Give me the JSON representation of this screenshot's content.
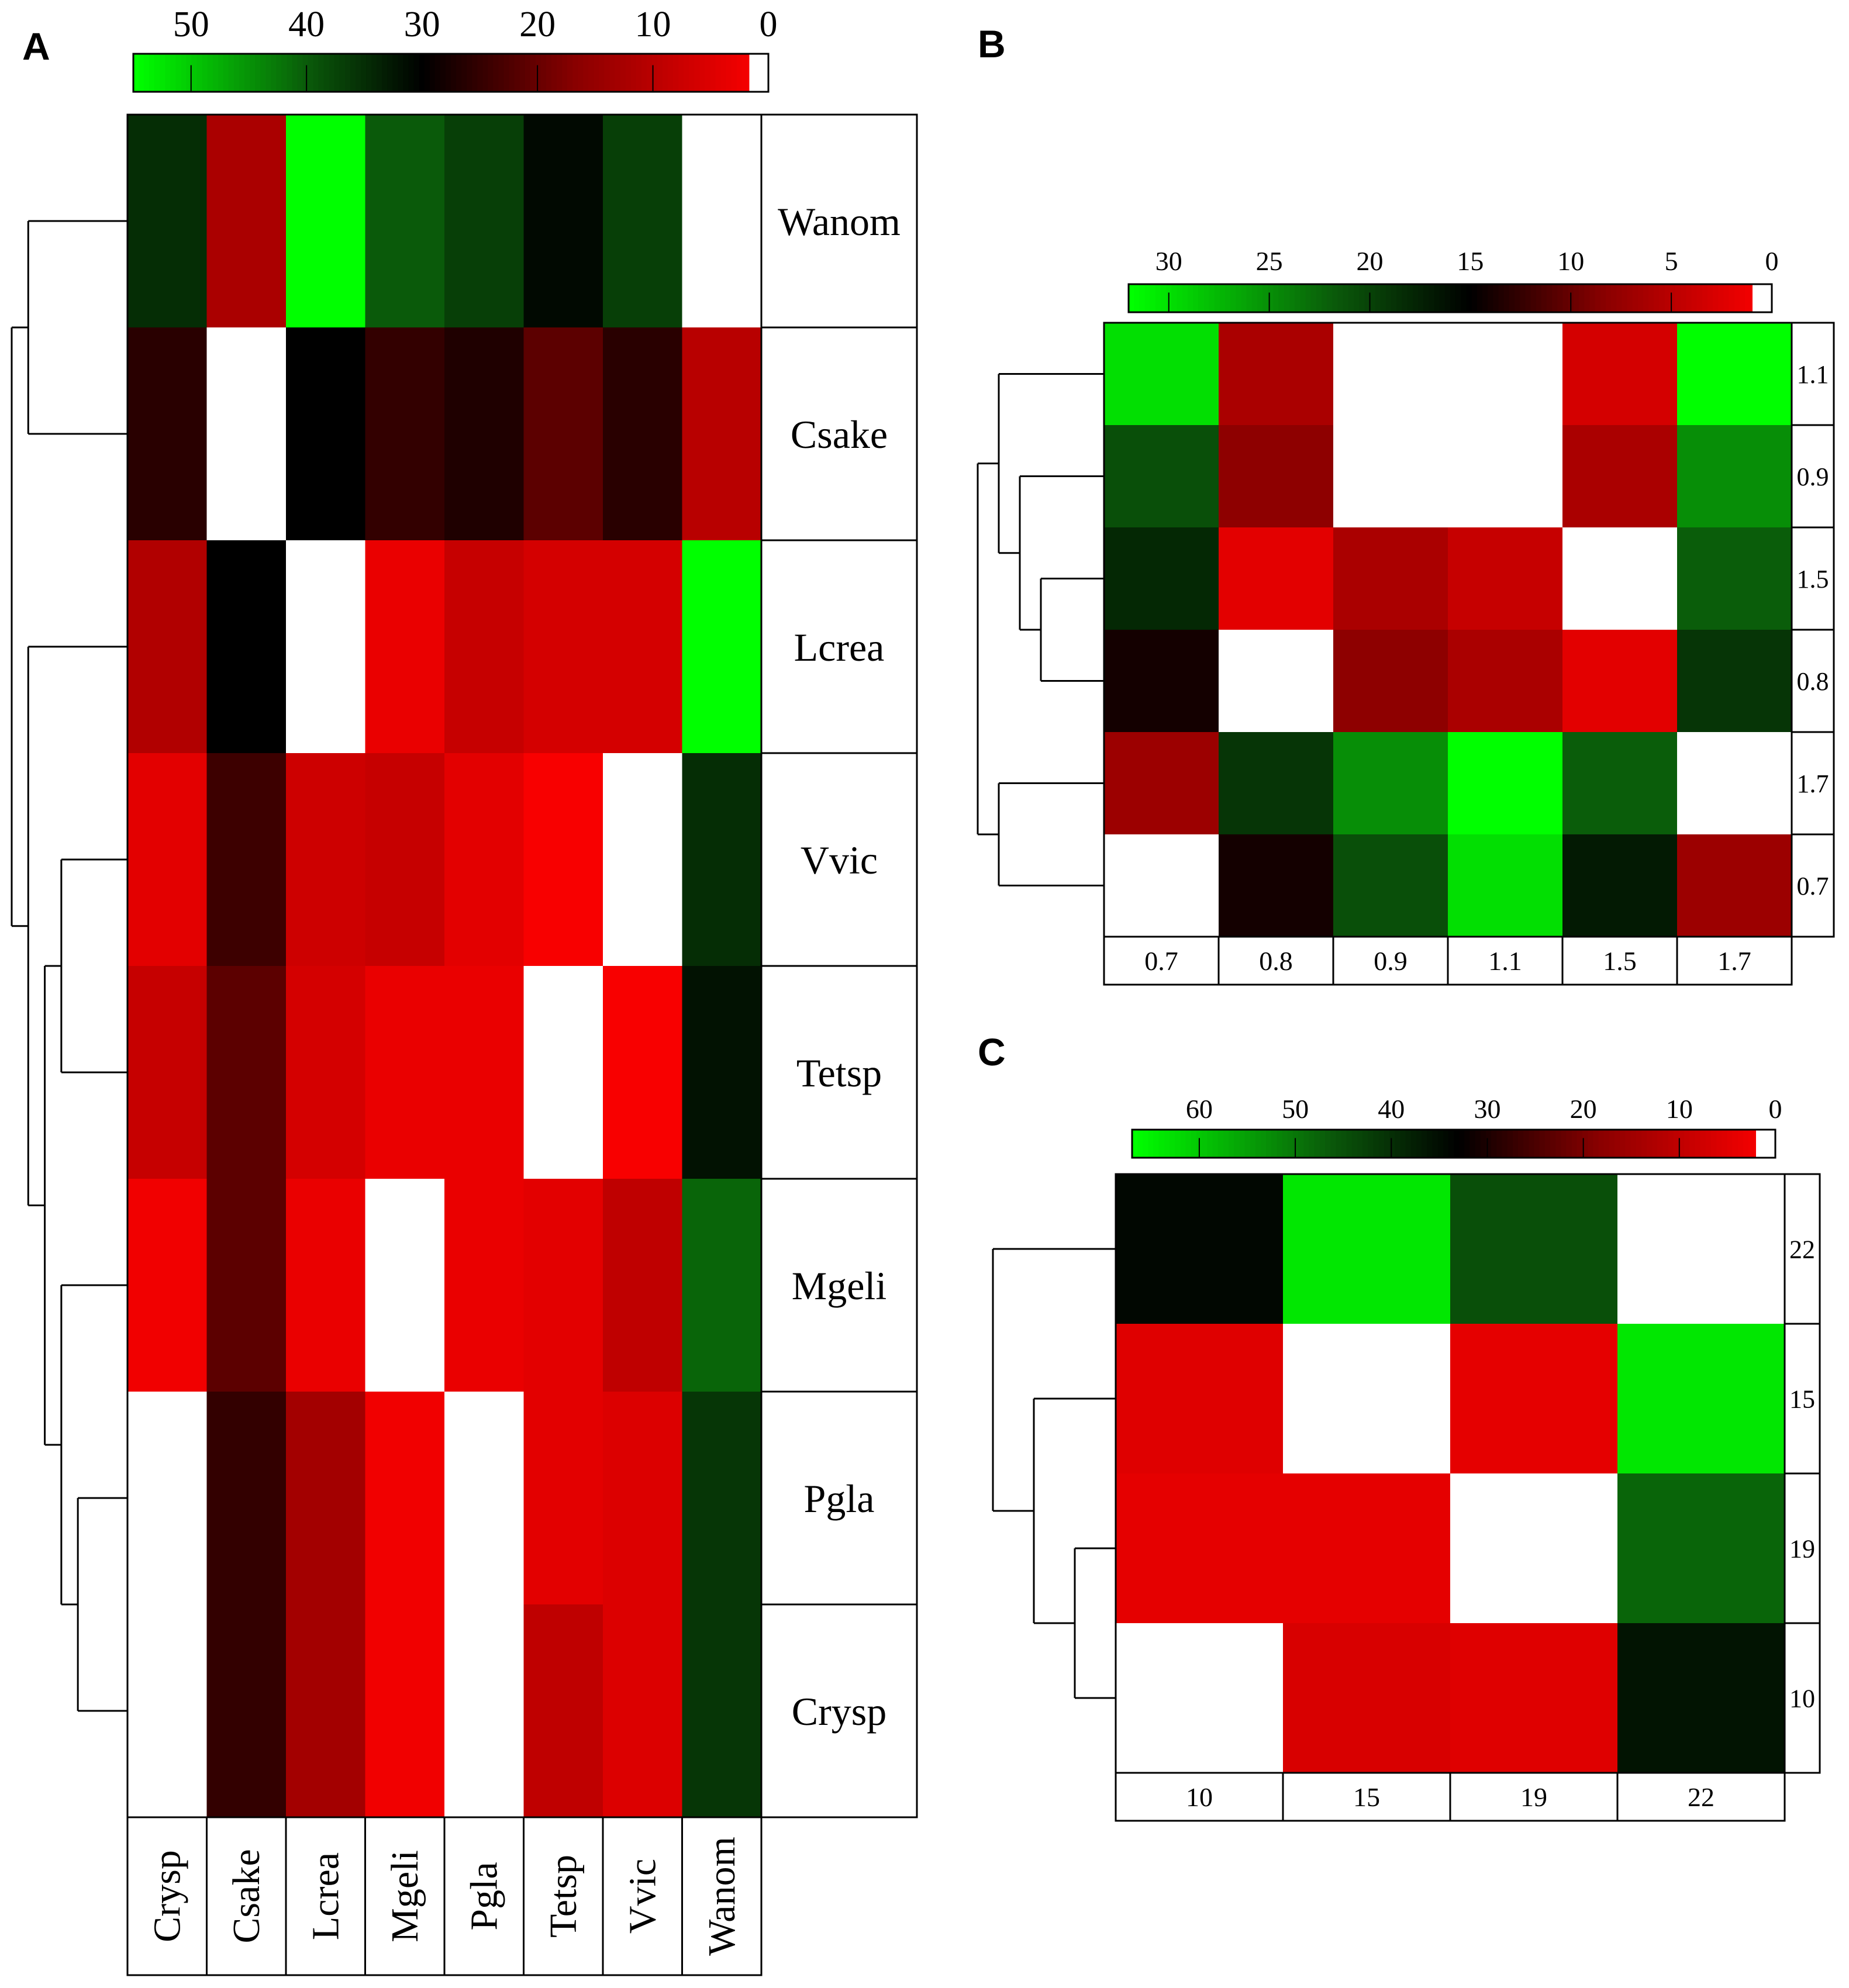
{
  "colors": {
    "scale": [
      "#ff0000",
      "#8a0000",
      "#000000",
      "#0a5a0a",
      "#00ff00"
    ],
    "diagonal": "#ffffff",
    "grid": "#000000"
  },
  "chart_data": [
    {
      "panel": "A",
      "type": "heatmap",
      "title": "",
      "colorbar": {
        "ticks": [
          "50",
          "40",
          "30",
          "20",
          "10",
          "0"
        ],
        "min": 0,
        "max": 55,
        "mid": 30,
        "reversed": true
      },
      "rows": [
        "Wanom",
        "Csake",
        "Lcrea",
        "Vvic",
        "Tetsp",
        "Mgeli",
        "Pgla",
        "Crysp"
      ],
      "columns": [
        "Crysp",
        "Csake",
        "Lcrea",
        "Mgeli",
        "Pgla",
        "Tetsp",
        "Vvic",
        "Wanom"
      ],
      "values": [
        [
          35,
          12,
          55,
          40,
          37,
          31,
          37,
          null
        ],
        [
          26,
          null,
          30,
          25,
          27,
          21,
          26,
          10
        ],
        [
          11,
          30,
          null,
          3,
          8,
          6,
          6,
          55
        ],
        [
          4,
          24,
          7,
          8,
          4,
          1,
          null,
          35
        ],
        [
          8,
          21,
          6,
          3,
          3,
          null,
          1,
          32
        ],
        [
          2,
          21,
          3,
          null,
          3,
          4,
          9,
          41
        ],
        [
          null,
          25,
          13,
          2,
          null,
          4,
          5,
          36
        ],
        [
          null,
          25,
          13,
          2,
          null,
          9,
          5,
          36
        ]
      ],
      "dendrogram": "rows"
    },
    {
      "panel": "B",
      "type": "heatmap",
      "title": "",
      "colorbar": {
        "ticks": [
          "30",
          "25",
          "20",
          "15",
          "10",
          "5",
          "0"
        ],
        "min": 0,
        "max": 32,
        "mid": 15,
        "reversed": true
      },
      "rows": [
        "1.1",
        "0.9",
        "1.5",
        "0.8",
        "1.7",
        "0.7"
      ],
      "columns": [
        "0.7",
        "0.8",
        "0.9",
        "1.1",
        "1.5",
        "1.7"
      ],
      "values": [
        [
          30,
          6,
          null,
          null,
          3,
          32
        ],
        [
          21,
          8,
          null,
          null,
          6,
          25
        ],
        [
          18,
          2,
          6,
          4,
          null,
          22
        ],
        [
          14,
          null,
          8,
          6,
          2,
          19
        ],
        [
          7,
          19,
          25,
          32,
          22,
          null
        ],
        [
          null,
          14,
          21,
          30,
          17,
          7
        ]
      ],
      "dendrogram": "rows"
    },
    {
      "panel": "C",
      "type": "heatmap",
      "title": "",
      "colorbar": {
        "ticks": [
          "60",
          "50",
          "40",
          "30",
          "20",
          "10",
          "0"
        ],
        "min": 0,
        "max": 67,
        "mid": 33,
        "reversed": true
      },
      "rows": [
        "22",
        "15",
        "19",
        "10"
      ],
      "columns": [
        "10",
        "15",
        "19",
        "22"
      ],
      "values": [
        [
          34,
          64,
          45,
          null
        ],
        [
          5,
          null,
          4,
          64
        ],
        [
          4,
          4,
          null,
          48
        ],
        [
          null,
          6,
          5,
          36
        ]
      ],
      "dendrogram": "rows"
    }
  ]
}
